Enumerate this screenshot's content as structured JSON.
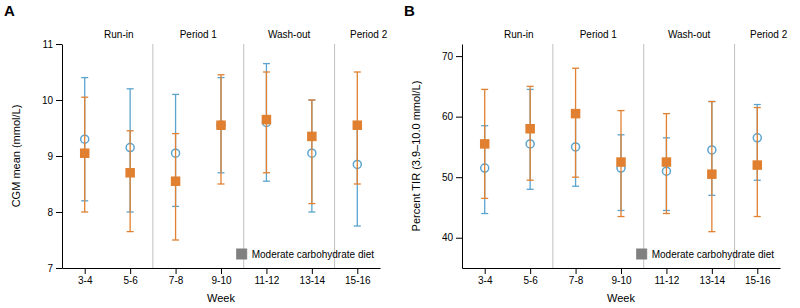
{
  "chart_data": [
    {
      "type": "scatter",
      "title": "A",
      "xlabel": "Week",
      "ylabel": "CGM mean (mmol/L)",
      "categories": [
        "3-4",
        "5-6",
        "7-8",
        "9-10",
        "11-12",
        "13-14",
        "15-16"
      ],
      "series": [
        {
          "color": "#5ba4cf",
          "marker": "circle-open",
          "values": [
            9.3,
            9.15,
            9.05,
            9.55,
            9.6,
            9.05,
            8.85
          ],
          "err_low": [
            1.1,
            1.15,
            0.95,
            0.85,
            1.05,
            1.05,
            1.1
          ],
          "err_high": [
            1.1,
            1.05,
            1.05,
            0.85,
            1.05,
            0.95,
            0.7
          ]
        },
        {
          "color": "#e08030",
          "marker": "square",
          "values": [
            9.05,
            8.7,
            8.55,
            9.55,
            9.65,
            9.35,
            9.55
          ],
          "err_low": [
            1.05,
            1.05,
            1.05,
            1.05,
            0.95,
            1.2,
            1.05
          ],
          "err_high": [
            1.0,
            0.75,
            0.85,
            0.9,
            0.85,
            0.65,
            0.95
          ]
        }
      ],
      "ylim": [
        7,
        11
      ],
      "yticks": [
        7,
        8,
        9,
        10,
        11
      ],
      "grid": false,
      "vlines": {
        "values": [
          1.5,
          3.5,
          5.5
        ],
        "color": "#c0c0c0"
      },
      "annotations": [
        {
          "text": "Run-in",
          "x": 0.75
        },
        {
          "text": "Period 1",
          "x": 2.5
        },
        {
          "text": "Wash-out",
          "x": 4.5
        },
        {
          "text": "Period 2",
          "x": 6.25
        }
      ],
      "legend": "lower right",
      "legend_items": [
        {
          "name": "Moderate carbohydrate diet",
          "color": "#808080"
        }
      ]
    },
    {
      "type": "scatter",
      "title": "B",
      "xlabel": "Week",
      "ylabel": "Percent TIR (3.9–10.0 mmol/L)",
      "categories": [
        "3-4",
        "5-6",
        "7-8",
        "9-10",
        "11-12",
        "13-14",
        "15-16"
      ],
      "series": [
        {
          "color": "#5ba4cf",
          "marker": "circle-open",
          "values": [
            51.5,
            55.5,
            55.0,
            51.5,
            51.0,
            54.5,
            56.5
          ],
          "err_low": [
            7.5,
            7.5,
            6.5,
            7.0,
            6.5,
            7.5,
            7.0
          ],
          "err_high": [
            7.0,
            9.0,
            5.5,
            5.5,
            5.5,
            8.0,
            5.5
          ]
        },
        {
          "color": "#e08030",
          "marker": "square",
          "values": [
            55.5,
            58.0,
            60.5,
            52.5,
            52.5,
            50.5,
            52.0
          ],
          "err_low": [
            9.0,
            8.5,
            10.5,
            9.0,
            8.5,
            9.5,
            8.5
          ],
          "err_high": [
            9.0,
            7.0,
            7.5,
            8.5,
            8.0,
            12.0,
            9.5
          ]
        }
      ],
      "ylim": [
        35,
        72
      ],
      "yticks": [
        40,
        50,
        60,
        70
      ],
      "grid": false,
      "vlines": {
        "values": [
          1.5,
          3.5,
          5.5
        ],
        "color": "#c0c0c0"
      },
      "annotations": [
        {
          "text": "Run-in",
          "x": 0.75
        },
        {
          "text": "Period 1",
          "x": 2.5
        },
        {
          "text": "Wash-out",
          "x": 4.5
        },
        {
          "text": "Period 2",
          "x": 6.25
        }
      ],
      "legend": "lower right",
      "legend_items": [
        {
          "name": "Moderate carbohydrate diet",
          "color": "#808080"
        }
      ]
    }
  ]
}
